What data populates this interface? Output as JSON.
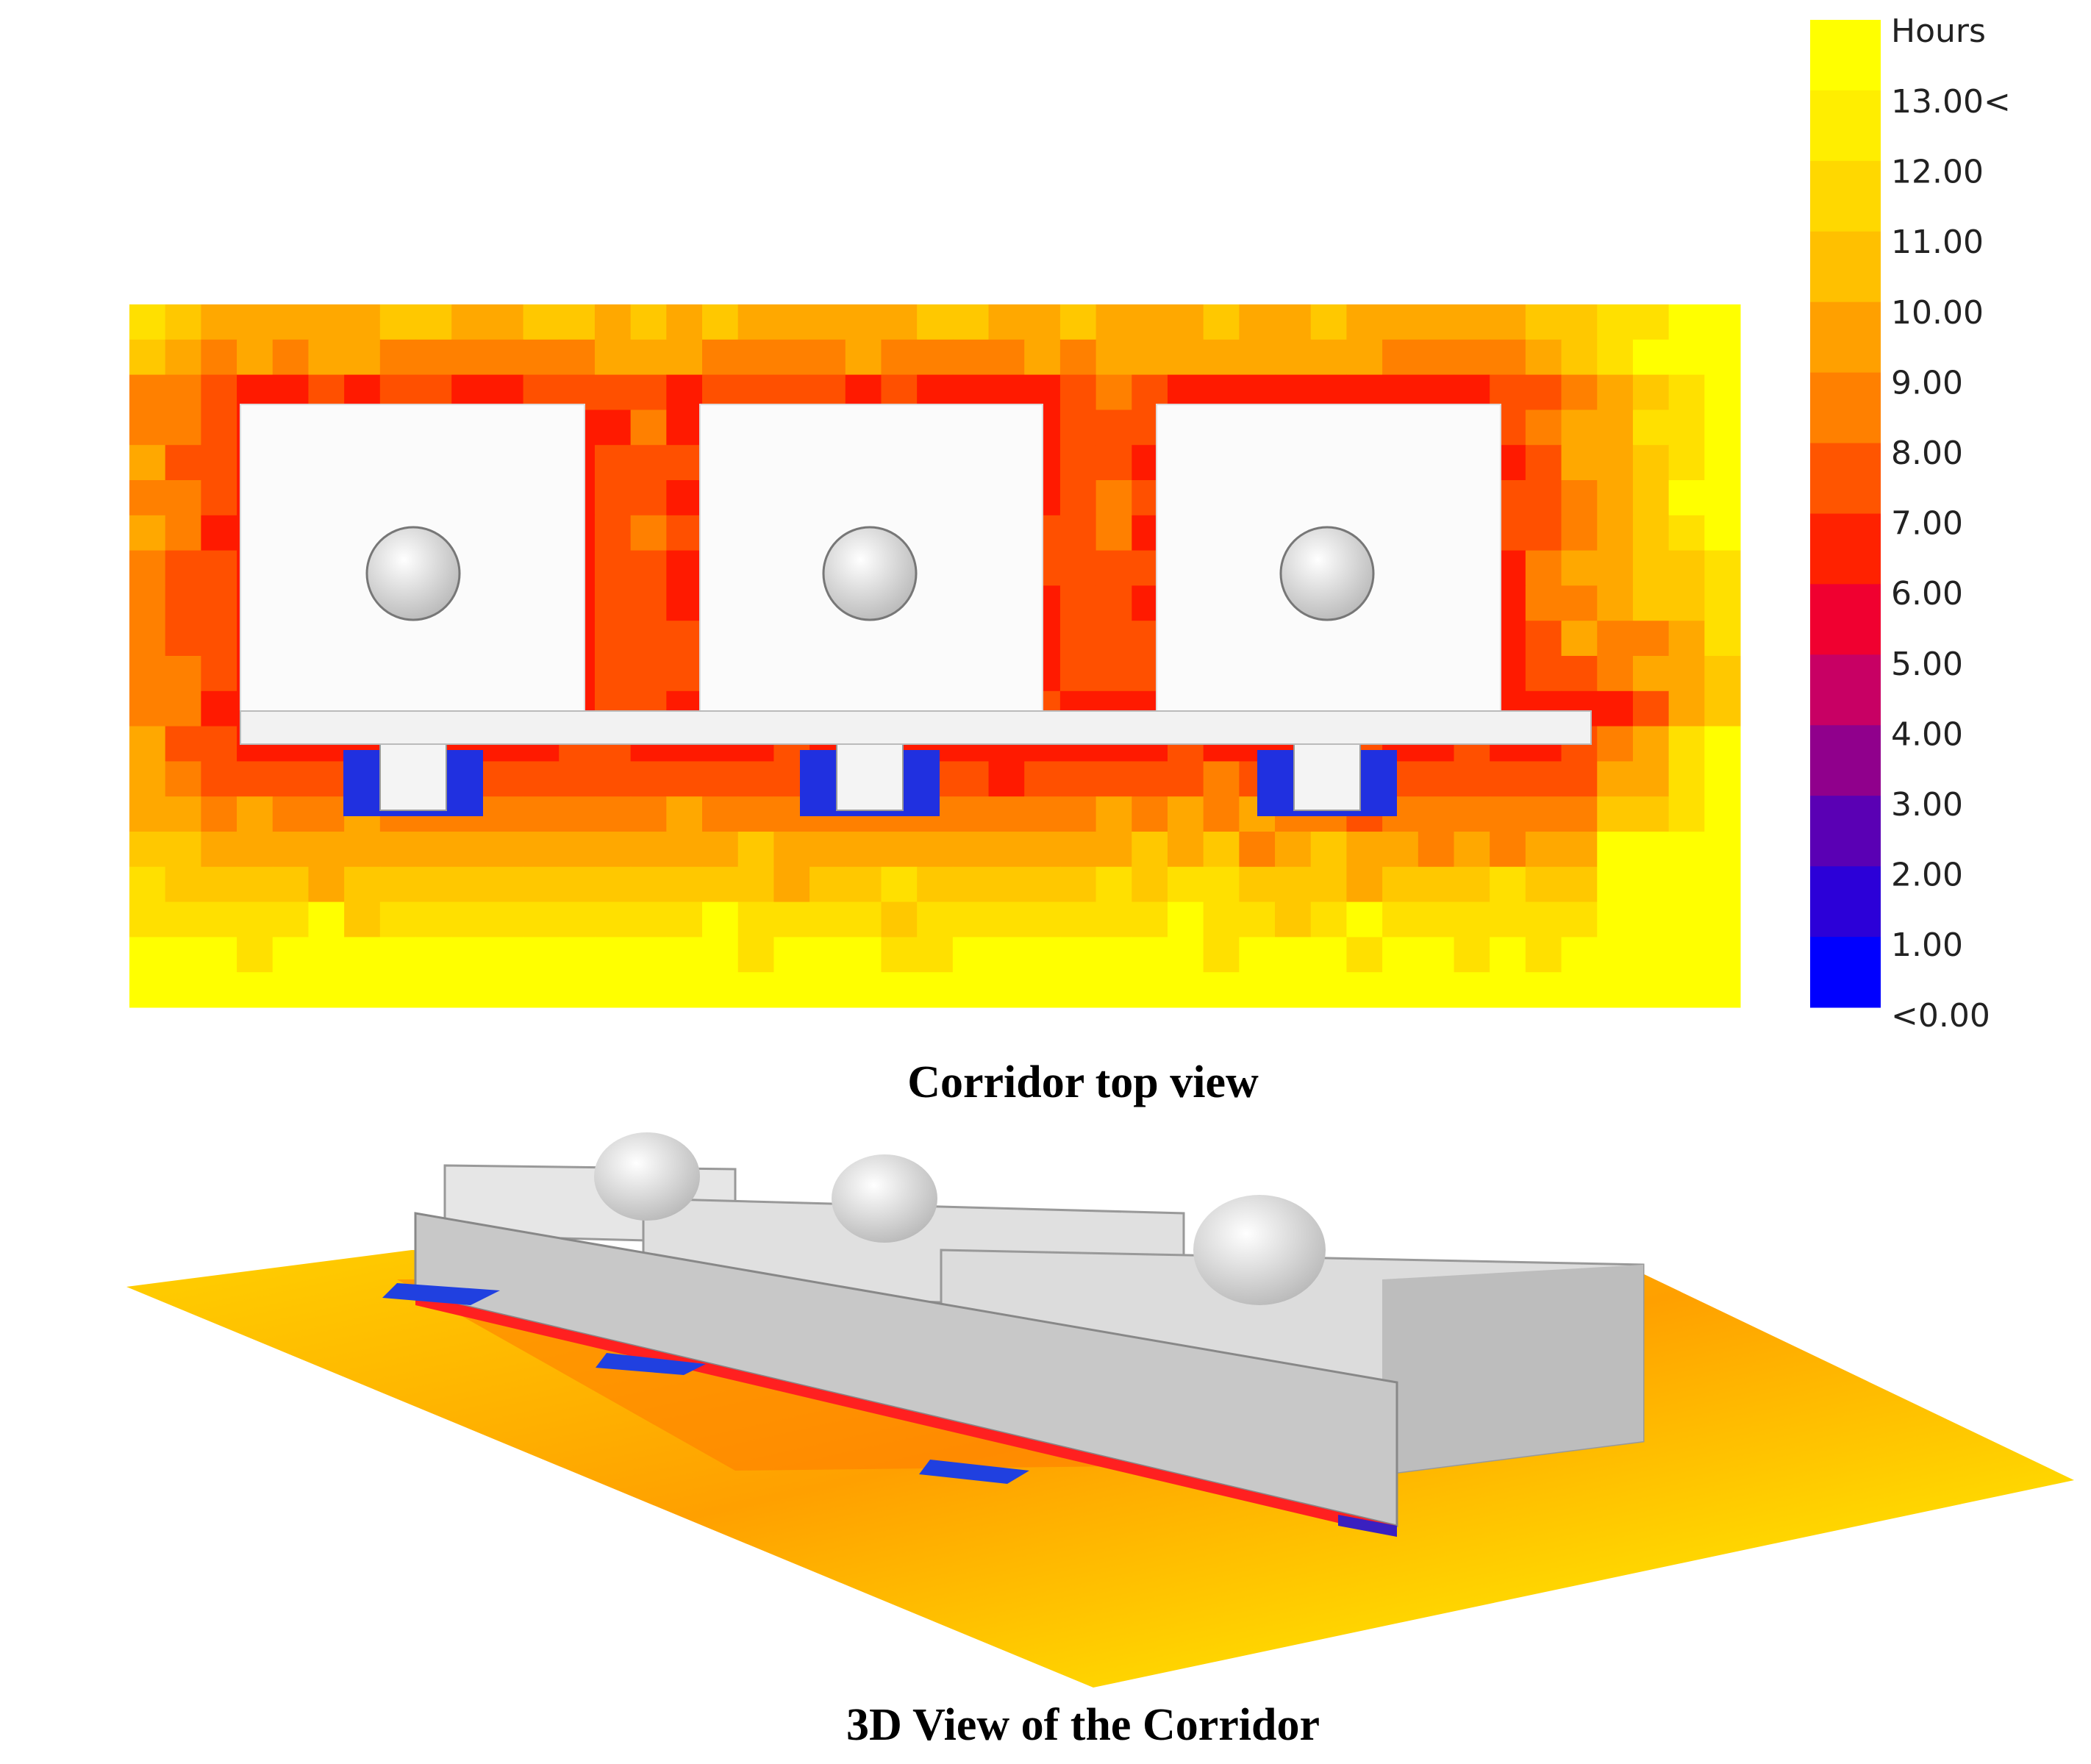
{
  "legend": {
    "title": "Hours",
    "labels": [
      "13.00<",
      "12.00",
      "11.00",
      "10.00",
      "9.00",
      "8.00",
      "7.00",
      "6.00",
      "5.00",
      "4.00",
      "3.00",
      "2.00",
      "1.00",
      "<0.00"
    ],
    "colors": [
      "#ffff00",
      "#ffee00",
      "#ffd800",
      "#ffc000",
      "#ffa000",
      "#ff8000",
      "#ff5500",
      "#ff2200",
      "#f00030",
      "#c80064",
      "#90008c",
      "#5a00b4",
      "#2c00d8",
      "#0000ff"
    ]
  },
  "captions": {
    "top": "Corridor top view",
    "bottom": "3D View of the Corridor"
  }
}
